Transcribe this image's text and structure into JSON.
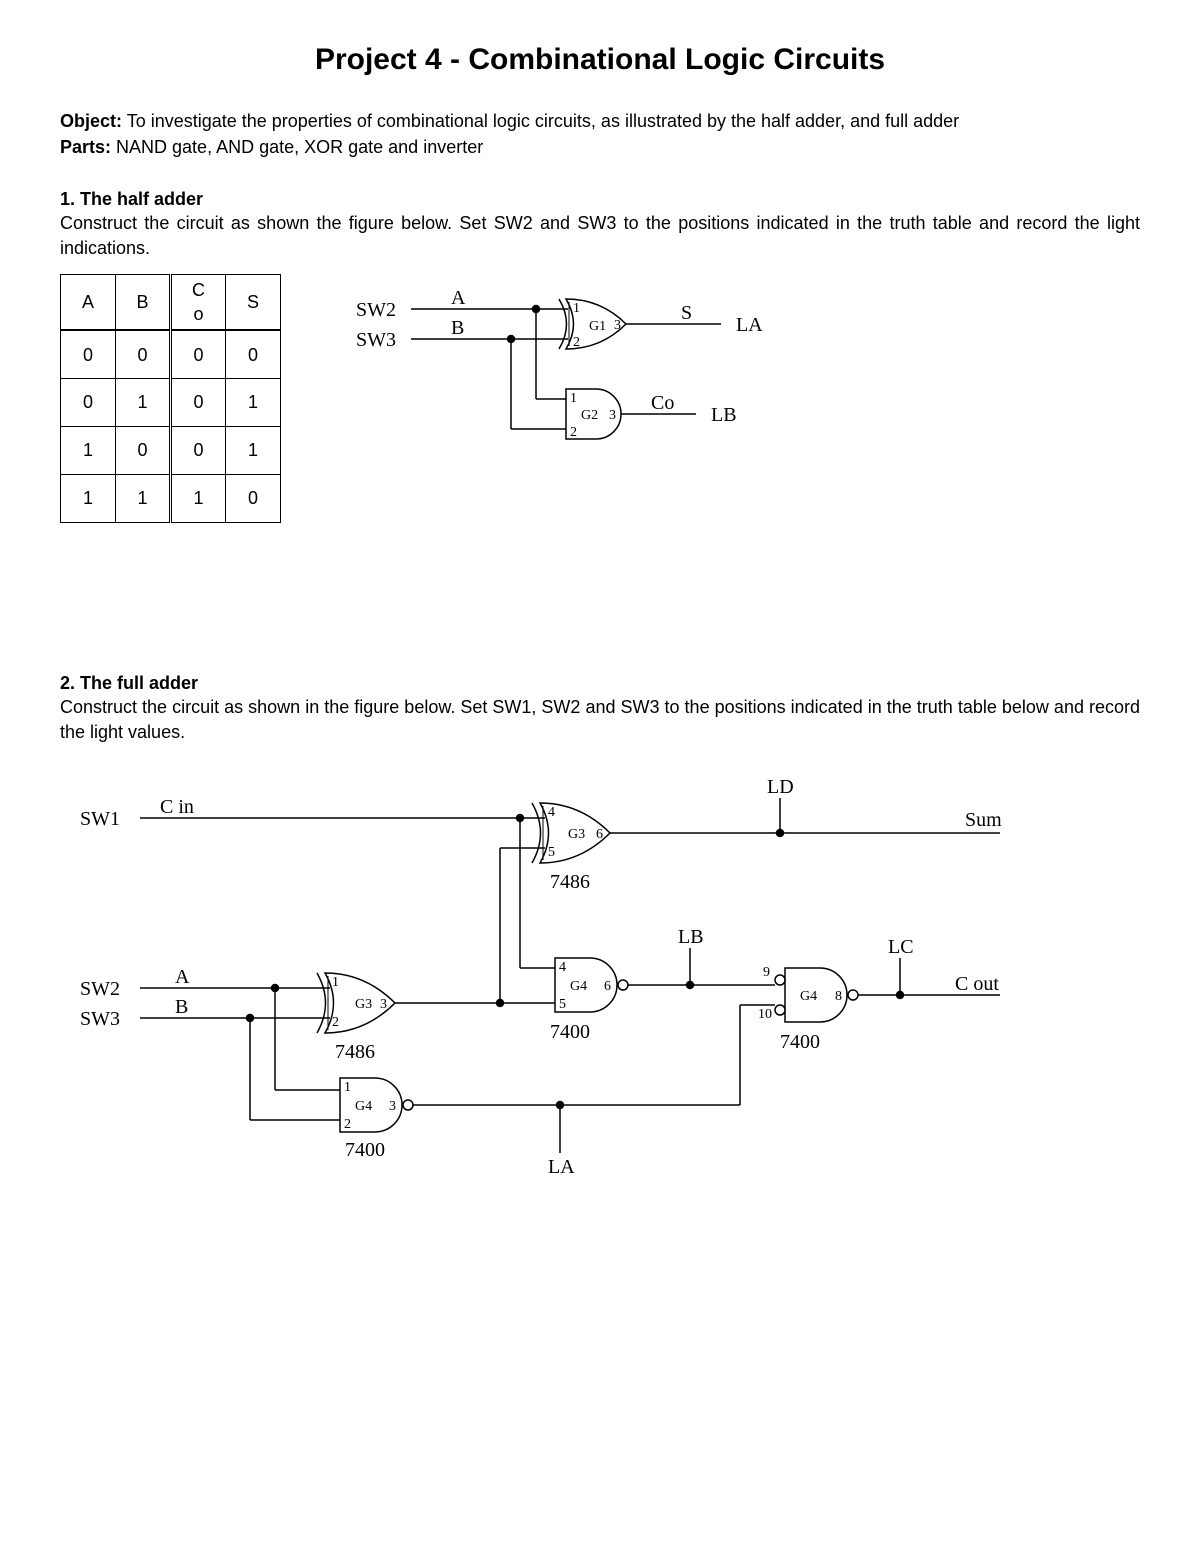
{
  "title": "Project 4 - Combinational Logic Circuits",
  "object_label": "Object:",
  "object_text": " To investigate the properties of combinational logic circuits, as illustrated by the half adder, and full adder",
  "parts_label": "Parts:",
  "parts_text": " NAND gate, AND gate, XOR gate and inverter",
  "section1": {
    "head": "1. The half adder",
    "body": "Construct the circuit as shown the figure below. Set SW2 and SW3 to the positions indicated in the truth table and record the light indications.",
    "table": {
      "headers": [
        "A",
        "B",
        "C\no",
        "S"
      ],
      "rows": [
        [
          "0",
          "0",
          "0",
          "0"
        ],
        [
          "0",
          "1",
          "0",
          "1"
        ],
        [
          "1",
          "0",
          "0",
          "1"
        ],
        [
          "1",
          "1",
          "1",
          "0"
        ]
      ]
    },
    "diagram": {
      "type": "circuit",
      "stroke": "#000000",
      "fill": "#ffffff",
      "text_color": "#000000",
      "font": "Times New Roman",
      "labels": {
        "sw2": "SW2",
        "sw3": "SW3",
        "A": "A",
        "B": "B",
        "g1": "G1",
        "g1_pins": [
          "1",
          "2",
          "3"
        ],
        "g2": "G2",
        "g2_pins": [
          "1",
          "2",
          "3"
        ],
        "S": "S",
        "Co": "Co",
        "LA": "LA",
        "LB": "LB"
      }
    }
  },
  "section2": {
    "head": "2. The full adder",
    "body": "Construct the circuit as shown in the figure below. Set SW1, SW2 and SW3 to the positions indicated in the truth table below and record the light values.",
    "diagram": {
      "type": "circuit",
      "stroke": "#000000",
      "fill": "#ffffff",
      "text_color": "#000000",
      "font": "Times New Roman",
      "labels": {
        "sw1": "SW1",
        "sw2": "SW2",
        "sw3": "SW3",
        "Cin": "C in",
        "A": "A",
        "B": "B",
        "g3a": "G3",
        "g3a_ic": "7486",
        "g3a_pins": [
          "1",
          "2",
          "3"
        ],
        "g3b": "G3",
        "g3b_ic": "7486",
        "g3b_pins": [
          "4",
          "5",
          "6"
        ],
        "g4a": "G4",
        "g4a_ic": "7400",
        "g4a_pins": [
          "1",
          "2",
          "3"
        ],
        "g4b": "G4",
        "g4b_ic": "7400",
        "g4b_pins": [
          "4",
          "5",
          "6"
        ],
        "g4c": "G4",
        "g4c_ic": "7400",
        "g4c_pins": [
          "9",
          "10",
          "8"
        ],
        "Sum": "Sum",
        "Cout": "C out",
        "LA": "LA",
        "LB": "LB",
        "LC": "LC",
        "LD": "LD"
      }
    }
  }
}
